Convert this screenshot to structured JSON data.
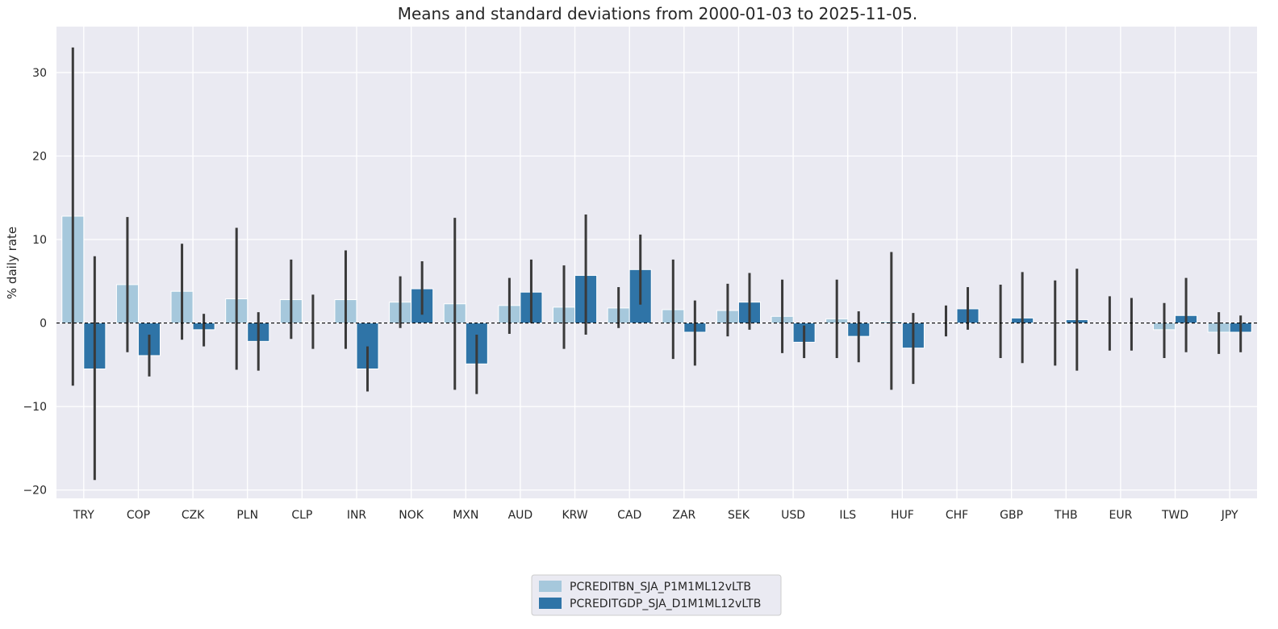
{
  "chart_data": {
    "type": "bar",
    "title": "Means and standard deviations from 2000-01-03 to 2025-11-05.",
    "xlabel": "",
    "ylabel": "% daily rate",
    "ylim": [
      -21,
      35.5
    ],
    "yticks": [
      -20,
      -10,
      0,
      10,
      20,
      30
    ],
    "ytick_labels": [
      "−20",
      "−10",
      "0",
      "10",
      "20",
      "30"
    ],
    "grid": true,
    "zero_line": "dashed",
    "legend_position": "bottom-center",
    "categories": [
      "TRY",
      "COP",
      "CZK",
      "PLN",
      "CLP",
      "INR",
      "NOK",
      "MXN",
      "AUD",
      "KRW",
      "CAD",
      "ZAR",
      "SEK",
      "USD",
      "ILS",
      "HUF",
      "CHF",
      "GBP",
      "THB",
      "EUR",
      "TWD",
      "JPY"
    ],
    "series": [
      {
        "name": "PCREDITBN_SJA_P1M1ML12vLTB",
        "color": "#a6c8dc",
        "values": [
          12.8,
          4.6,
          3.8,
          2.9,
          2.8,
          2.8,
          2.5,
          2.3,
          2.1,
          1.9,
          1.8,
          1.6,
          1.5,
          0.8,
          0.5,
          0.2,
          0.1,
          0.0,
          0.0,
          0.0,
          -0.8,
          -1.1
        ],
        "err_low": [
          -7.5,
          -3.5,
          -2.0,
          -5.6,
          -1.9,
          -3.1,
          -0.6,
          -8.0,
          -1.3,
          -3.1,
          -0.6,
          -4.3,
          -1.6,
          -3.6,
          -4.2,
          -8.0,
          -1.6,
          -4.2,
          -5.1,
          -3.3,
          -4.2,
          -3.7
        ],
        "err_high": [
          33.0,
          12.7,
          9.5,
          11.4,
          7.6,
          8.7,
          5.6,
          12.6,
          5.4,
          6.9,
          4.3,
          7.6,
          4.7,
          5.2,
          5.2,
          8.5,
          2.1,
          4.6,
          5.1,
          3.2,
          2.4,
          1.3
        ]
      },
      {
        "name": "PCREDITGDP_SJA_D1M1ML12vLTB",
        "color": "#2f74a7",
        "values": [
          -5.5,
          -3.9,
          -0.8,
          -2.2,
          0.1,
          -5.5,
          4.1,
          -4.9,
          3.7,
          5.7,
          6.4,
          -1.1,
          2.5,
          -2.3,
          -1.6,
          -3.0,
          1.7,
          0.6,
          0.4,
          -0.1,
          0.9,
          -1.1
        ],
        "err_low": [
          -18.8,
          -6.4,
          -2.8,
          -5.7,
          -3.1,
          -8.2,
          1.0,
          -8.5,
          0.0,
          -1.4,
          2.2,
          -5.1,
          -0.8,
          -4.2,
          -4.7,
          -7.3,
          -0.8,
          -4.8,
          -5.7,
          -3.3,
          -3.5,
          -3.5
        ],
        "err_high": [
          8.0,
          -1.4,
          1.1,
          1.3,
          3.4,
          -2.8,
          7.4,
          -1.4,
          7.6,
          13.0,
          10.6,
          2.7,
          6.0,
          -0.3,
          1.4,
          1.2,
          4.3,
          6.1,
          6.5,
          3.0,
          5.4,
          0.9
        ]
      }
    ]
  }
}
